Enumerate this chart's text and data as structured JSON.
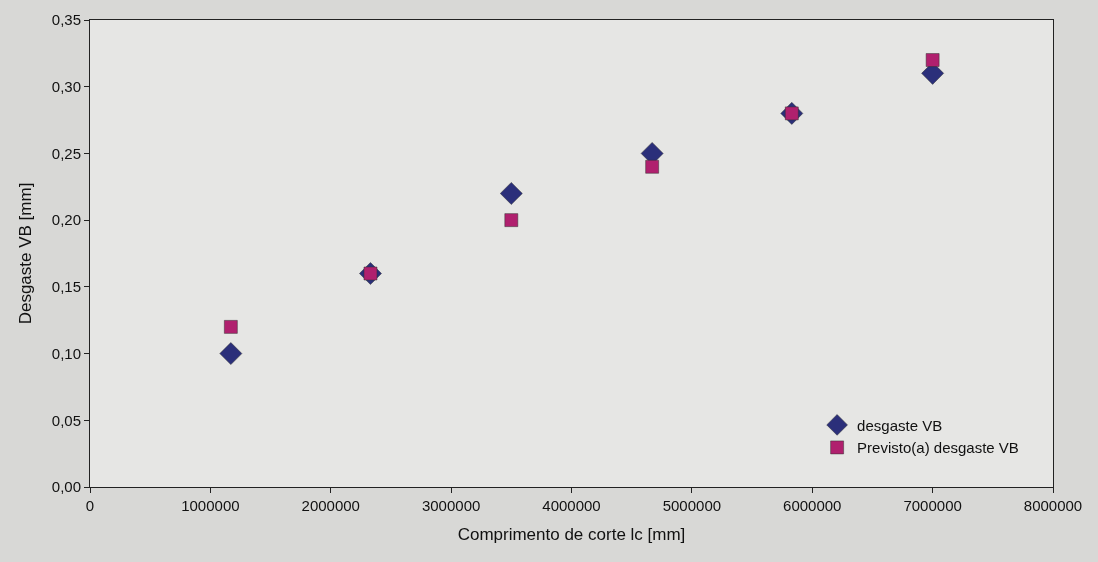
{
  "chart_data": {
    "type": "scatter",
    "xlabel": "Comprimento de corte lc [mm]",
    "ylabel": "Desgaste VB [mm]",
    "x": [
      1170000,
      2330000,
      3500000,
      4670000,
      5830000,
      7000000
    ],
    "series": [
      {
        "name": "desgaste VB",
        "color": "#2b2f7a",
        "marker": "diamond",
        "values": [
          0.1,
          0.16,
          0.22,
          0.25,
          0.28,
          0.31
        ]
      },
      {
        "name": "Previsto(a) desgaste VB",
        "color": "#b0206e",
        "marker": "square",
        "values": [
          0.12,
          0.16,
          0.2,
          0.24,
          0.28,
          0.32
        ]
      }
    ],
    "xlim": [
      0,
      8000000
    ],
    "xticks": [
      0,
      1000000,
      2000000,
      3000000,
      4000000,
      5000000,
      6000000,
      7000000,
      8000000
    ],
    "ylim": [
      0,
      0.35
    ],
    "yticks": [
      {
        "value": 0,
        "label": "0,00"
      },
      {
        "value": 0.05,
        "label": "0,05"
      },
      {
        "value": 0.1,
        "label": "0,10"
      },
      {
        "value": 0.15,
        "label": "0,15"
      },
      {
        "value": 0.2,
        "label": "0,20"
      },
      {
        "value": 0.25,
        "label": "0,25"
      },
      {
        "value": 0.3,
        "label": "0,30"
      },
      {
        "value": 0.35,
        "label": "0,35"
      }
    ],
    "grid": false,
    "legend": "bottom right"
  }
}
